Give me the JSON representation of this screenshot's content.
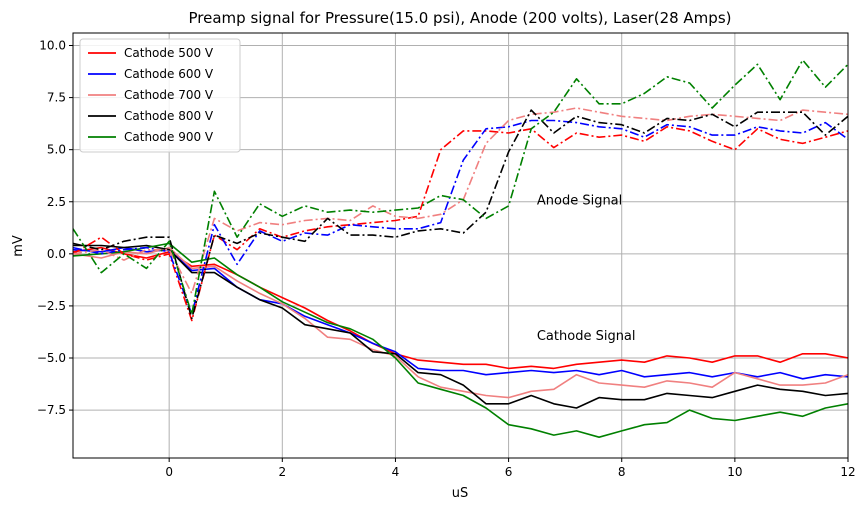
{
  "chart_data": {
    "type": "line",
    "title": "Preamp signal for Pressure(15.0 psi), Anode (200 volts), Laser(28 Amps)",
    "xlabel": "uS",
    "ylabel": "mV",
    "xlim": [
      -1.7,
      12
    ],
    "ylim": [
      -9.8,
      10.6
    ],
    "xticks": [
      0,
      2,
      4,
      6,
      8,
      10,
      12
    ],
    "yticks": [
      -7.5,
      -5.0,
      -2.5,
      0.0,
      2.5,
      5.0,
      7.5,
      10.0
    ],
    "xtick_labels": [
      "0",
      "2",
      "4",
      "6",
      "8",
      "10",
      "12"
    ],
    "ytick_labels": [
      "−7.5",
      "−5.0",
      "−2.5",
      "0.0",
      "2.5",
      "5.0",
      "7.5",
      "10.0"
    ],
    "grid": true,
    "legend_position": "top-left",
    "legend": [
      {
        "label": "Cathode 500 V",
        "color": "#ff0000"
      },
      {
        "label": "Cathode 600 V",
        "color": "#0000ff"
      },
      {
        "label": "Cathode 700 V",
        "color": "#f08080"
      },
      {
        "label": "Cathode 800 V",
        "color": "#000000"
      },
      {
        "label": "Cathode 900 V",
        "color": "#008000"
      }
    ],
    "annotations": [
      {
        "text": "Anode Signal",
        "x": 6.5,
        "y": 2.55
      },
      {
        "text": "Cathode Signal",
        "x": 6.5,
        "y": -3.95
      }
    ],
    "series": [
      {
        "name": "Cathode 500 V",
        "kind": "cathode",
        "style": "solid",
        "color": "#ff0000",
        "x": [
          -1.7,
          -1.2,
          -0.8,
          -0.4,
          0,
          0.4,
          0.8,
          1.2,
          1.6,
          2,
          2.4,
          2.8,
          3.2,
          3.6,
          4,
          4.4,
          4.8,
          5.2,
          5.6,
          6,
          6.4,
          6.8,
          7.2,
          7.6,
          8,
          8.4,
          8.8,
          9.2,
          9.6,
          10,
          10.4,
          10.8,
          11.2,
          11.6,
          12
        ],
        "y": [
          0.1,
          0.3,
          0,
          -0.2,
          0.1,
          -0.6,
          -0.5,
          -1.0,
          -1.6,
          -2.1,
          -2.6,
          -3.2,
          -3.7,
          -4.3,
          -4.8,
          -5.1,
          -5.2,
          -5.3,
          -5.3,
          -5.5,
          -5.4,
          -5.5,
          -5.3,
          -5.2,
          -5.1,
          -5.2,
          -4.9,
          -5.0,
          -5.2,
          -4.9,
          -4.9,
          -5.2,
          -4.8,
          -4.8,
          -5.0
        ]
      },
      {
        "name": "Cathode 600 V",
        "kind": "cathode",
        "style": "solid",
        "color": "#0000ff",
        "x": [
          -1.7,
          -1.2,
          -0.8,
          -0.4,
          0,
          0.4,
          0.8,
          1.2,
          1.6,
          2,
          2.4,
          2.8,
          3.2,
          3.6,
          4,
          4.4,
          4.8,
          5.2,
          5.6,
          6,
          6.4,
          6.8,
          7.2,
          7.6,
          8,
          8.4,
          8.8,
          9.2,
          9.6,
          10,
          10.4,
          10.8,
          11.2,
          11.6,
          12
        ],
        "y": [
          0.2,
          0.1,
          0.3,
          0.1,
          0.2,
          -0.8,
          -0.7,
          -1.6,
          -2.2,
          -2.4,
          -3.0,
          -3.4,
          -3.8,
          -4.3,
          -4.7,
          -5.5,
          -5.6,
          -5.6,
          -5.8,
          -5.7,
          -5.6,
          -5.7,
          -5.6,
          -5.8,
          -5.6,
          -5.9,
          -5.8,
          -5.7,
          -5.9,
          -5.7,
          -5.9,
          -5.7,
          -6.0,
          -5.8,
          -5.9
        ]
      },
      {
        "name": "Cathode 700 V",
        "kind": "cathode",
        "style": "solid",
        "color": "#f08080",
        "x": [
          -1.7,
          -1.2,
          -0.8,
          -0.4,
          0,
          0.4,
          0.8,
          1.2,
          1.6,
          2,
          2.4,
          2.8,
          3.2,
          3.6,
          4,
          4.4,
          4.8,
          5.2,
          5.6,
          6,
          6.4,
          6.8,
          7.2,
          7.6,
          8,
          8.4,
          8.8,
          9.2,
          9.6,
          10,
          10.4,
          10.8,
          11.2,
          11.6,
          12
        ],
        "y": [
          0.0,
          -0.2,
          0.1,
          0.0,
          0.3,
          -0.7,
          -0.6,
          -1.3,
          -1.9,
          -2.4,
          -3.1,
          -4.0,
          -4.1,
          -4.6,
          -4.9,
          -5.9,
          -6.4,
          -6.6,
          -6.8,
          -6.9,
          -6.6,
          -6.5,
          -5.8,
          -6.2,
          -6.3,
          -6.4,
          -6.1,
          -6.2,
          -6.4,
          -5.7,
          -6.0,
          -6.3,
          -6.3,
          -6.2,
          -5.8
        ]
      },
      {
        "name": "Cathode 800 V",
        "kind": "cathode",
        "style": "solid",
        "color": "#000000",
        "x": [
          -1.7,
          -1.2,
          -0.8,
          -0.4,
          0,
          0.4,
          0.8,
          1.2,
          1.6,
          2,
          2.4,
          2.8,
          3.2,
          3.6,
          4,
          4.4,
          4.8,
          5.2,
          5.6,
          6,
          6.4,
          6.8,
          7.2,
          7.6,
          8,
          8.4,
          8.8,
          9.2,
          9.6,
          10,
          10.4,
          10.8,
          11.2,
          11.6,
          12
        ],
        "y": [
          0.4,
          0.4,
          0.3,
          0.4,
          0.2,
          -0.9,
          -0.9,
          -1.6,
          -2.2,
          -2.6,
          -3.4,
          -3.6,
          -3.8,
          -4.7,
          -4.8,
          -5.7,
          -5.8,
          -6.3,
          -7.2,
          -7.2,
          -6.8,
          -7.2,
          -7.4,
          -6.9,
          -7.0,
          -7.0,
          -6.7,
          -6.8,
          -6.9,
          -6.6,
          -6.3,
          -6.5,
          -6.6,
          -6.8,
          -6.7
        ]
      },
      {
        "name": "Cathode 900 V",
        "kind": "cathode",
        "style": "solid",
        "color": "#008000",
        "x": [
          -1.7,
          -1.2,
          -0.8,
          -0.4,
          0,
          0.4,
          0.8,
          1.2,
          1.6,
          2,
          2.4,
          2.8,
          3.2,
          3.6,
          4,
          4.4,
          4.8,
          5.2,
          5.6,
          6,
          6.4,
          6.8,
          7.2,
          7.6,
          8,
          8.4,
          8.8,
          9.2,
          9.6,
          10,
          10.4,
          10.8,
          11.2,
          11.6,
          12
        ],
        "y": [
          -0.1,
          0.0,
          0.1,
          0.3,
          0.5,
          -0.4,
          -0.2,
          -1.0,
          -1.6,
          -2.3,
          -2.8,
          -3.3,
          -3.6,
          -4.1,
          -5.0,
          -6.2,
          -6.5,
          -6.8,
          -7.4,
          -8.2,
          -8.4,
          -8.7,
          -8.5,
          -8.8,
          -8.5,
          -8.2,
          -8.1,
          -7.5,
          -7.9,
          -8.0,
          -7.8,
          -7.6,
          -7.8,
          -7.4,
          -7.2
        ]
      },
      {
        "name": "",
        "kind": "anode",
        "style": "dashdot",
        "color": "#ff0000",
        "x": [
          -1.7,
          -1.2,
          -0.8,
          -0.4,
          0,
          0.4,
          0.8,
          1.2,
          1.6,
          2,
          2.4,
          2.8,
          3.2,
          3.6,
          4,
          4.4,
          4.8,
          5.2,
          5.6,
          6,
          6.4,
          6.8,
          7.2,
          7.6,
          8,
          8.4,
          8.8,
          9.2,
          9.6,
          10,
          10.4,
          10.8,
          11.2,
          11.6,
          12
        ],
        "y": [
          0.0,
          0.8,
          0.0,
          -0.3,
          0.0,
          -3.2,
          0.9,
          0.2,
          1.2,
          0.8,
          1.1,
          1.3,
          1.4,
          1.5,
          1.6,
          1.8,
          5.0,
          5.9,
          5.9,
          5.8,
          6.0,
          5.1,
          5.8,
          5.6,
          5.7,
          5.4,
          6.1,
          5.9,
          5.4,
          5.0,
          6.0,
          5.5,
          5.3,
          5.6,
          5.9
        ]
      },
      {
        "name": "",
        "kind": "anode",
        "style": "dashdot",
        "color": "#0000ff",
        "x": [
          -1.7,
          -1.2,
          -0.8,
          -0.4,
          0,
          0.4,
          0.8,
          1.2,
          1.6,
          2,
          2.4,
          2.8,
          3.2,
          3.6,
          4,
          4.4,
          4.8,
          5.2,
          5.6,
          6,
          6.4,
          6.8,
          7.2,
          7.6,
          8,
          8.4,
          8.8,
          9.2,
          9.6,
          10,
          10.4,
          10.8,
          11.2,
          11.6,
          12
        ],
        "y": [
          0.3,
          0.0,
          0.2,
          0.3,
          0.1,
          -2.9,
          1.4,
          -0.5,
          1.1,
          0.6,
          1.0,
          0.9,
          1.4,
          1.3,
          1.2,
          1.2,
          1.5,
          4.5,
          6.0,
          6.1,
          6.4,
          6.4,
          6.3,
          6.1,
          6.0,
          5.6,
          6.2,
          6.1,
          5.7,
          5.7,
          6.1,
          5.9,
          5.8,
          6.3,
          5.5
        ]
      },
      {
        "name": "",
        "kind": "anode",
        "style": "dashdot",
        "color": "#f08080",
        "x": [
          -1.7,
          -1.2,
          -0.8,
          -0.4,
          0,
          0.4,
          0.8,
          1.2,
          1.6,
          2,
          2.4,
          2.8,
          3.2,
          3.6,
          4,
          4.4,
          4.8,
          5.2,
          5.6,
          6,
          6.4,
          6.8,
          7.2,
          7.6,
          8,
          8.4,
          8.8,
          9.2,
          9.6,
          10,
          10.4,
          10.8,
          11.2,
          11.6,
          12
        ],
        "y": [
          0.0,
          0.2,
          -0.3,
          0.2,
          0.2,
          -1.9,
          1.7,
          1.1,
          1.5,
          1.4,
          1.6,
          1.7,
          1.6,
          2.3,
          1.8,
          1.7,
          1.9,
          2.6,
          5.3,
          6.4,
          6.7,
          6.8,
          7.0,
          6.8,
          6.6,
          6.5,
          6.4,
          6.6,
          6.7,
          6.6,
          6.5,
          6.4,
          6.9,
          6.8,
          6.7
        ]
      },
      {
        "name": "",
        "kind": "anode",
        "style": "dashdot",
        "color": "#000000",
        "x": [
          -1.7,
          -1.2,
          -0.8,
          -0.4,
          0,
          0.4,
          0.8,
          1.2,
          1.6,
          2,
          2.4,
          2.8,
          3.2,
          3.6,
          4,
          4.4,
          4.8,
          5.2,
          5.6,
          6,
          6.4,
          6.8,
          7.2,
          7.6,
          8,
          8.4,
          8.8,
          9.2,
          9.6,
          10,
          10.4,
          10.8,
          11.2,
          11.6,
          12
        ],
        "y": [
          0.5,
          0.2,
          0.6,
          0.8,
          0.8,
          -3.1,
          0.9,
          0.5,
          1.0,
          0.8,
          0.6,
          1.7,
          0.9,
          0.9,
          0.8,
          1.1,
          1.2,
          1.0,
          2.0,
          4.9,
          6.9,
          5.8,
          6.6,
          6.3,
          6.2,
          5.8,
          6.5,
          6.4,
          6.7,
          6.1,
          6.8,
          6.8,
          6.8,
          5.7,
          6.6
        ]
      },
      {
        "name": "",
        "kind": "anode",
        "style": "dashdot",
        "color": "#008000",
        "x": [
          -1.7,
          -1.2,
          -0.8,
          -0.4,
          0,
          0.4,
          0.8,
          1.2,
          1.6,
          2,
          2.4,
          2.8,
          3.2,
          3.6,
          4,
          4.4,
          4.8,
          5.2,
          5.6,
          6,
          6.4,
          6.8,
          7.2,
          7.6,
          8,
          8.4,
          8.8,
          9.2,
          9.6,
          10,
          10.4,
          10.8,
          11.2,
          11.6,
          12
        ],
        "y": [
          1.2,
          -0.9,
          0.0,
          -0.7,
          0.6,
          -2.9,
          3.0,
          0.8,
          2.4,
          1.8,
          2.3,
          2.0,
          2.1,
          2.0,
          2.1,
          2.2,
          2.8,
          2.6,
          1.7,
          2.3,
          6.0,
          6.8,
          8.4,
          7.2,
          7.2,
          7.7,
          8.5,
          8.2,
          7.0,
          8.1,
          9.1,
          7.4,
          9.3,
          8.0,
          9.1
        ]
      }
    ]
  }
}
